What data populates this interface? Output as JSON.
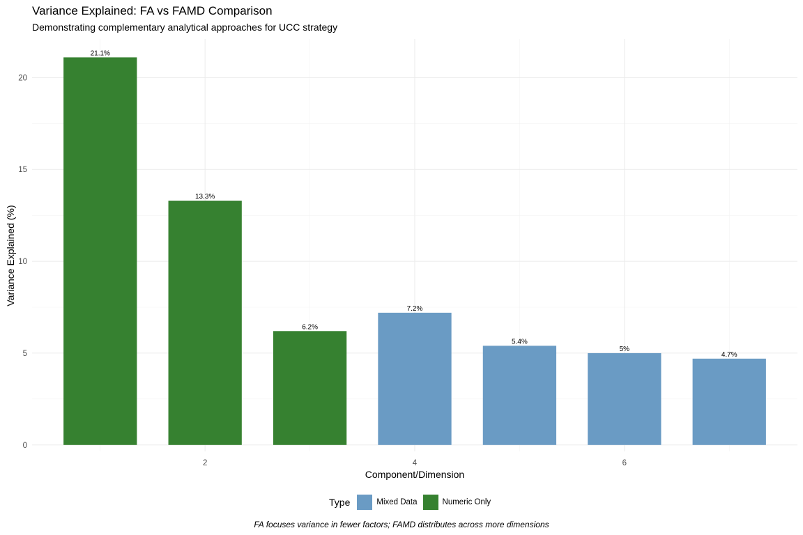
{
  "chart_data": {
    "type": "bar",
    "title": "Variance Explained: FA vs FAMD Comparison",
    "subtitle": "Demonstrating complementary analytical approaches for UCC strategy",
    "caption": "FA focuses variance in fewer factors; FAMD distributes across more dimensions",
    "xlabel": "Component/Dimension",
    "ylabel": "Variance Explained (%)",
    "x": [
      1,
      2,
      3,
      4,
      5,
      6,
      7
    ],
    "values": [
      21.1,
      13.3,
      6.2,
      7.2,
      5.4,
      5.0,
      4.7
    ],
    "data_labels": [
      "21.1%",
      "13.3%",
      "6.2%",
      "7.2%",
      "5.4%",
      "5%",
      "4.7%"
    ],
    "types": [
      "Numeric Only",
      "Numeric Only",
      "Numeric Only",
      "Mixed Data",
      "Mixed Data",
      "Mixed Data",
      "Mixed Data"
    ],
    "x_ticks": [
      2,
      4,
      6
    ],
    "y_ticks": [
      0,
      5,
      10,
      15,
      20
    ],
    "xlim": [
      0.35,
      7.65
    ],
    "ylim": [
      -0.35,
      22.1
    ],
    "legend": {
      "title": "Type",
      "position": "bottom",
      "entries": [
        {
          "label": "Mixed Data",
          "color": "#5A8FBF"
        },
        {
          "label": "Numeric Only",
          "color": "#1E7414"
        }
      ]
    },
    "colors": {
      "Mixed Data": "#6A9BC4",
      "Numeric Only": "#368130"
    },
    "grid": true
  }
}
